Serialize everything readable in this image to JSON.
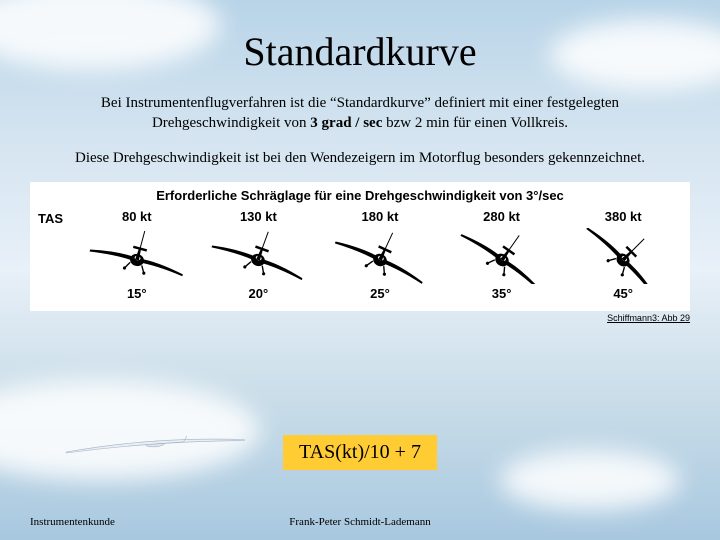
{
  "title": "Standardkurve",
  "para1_pre": "Bei Instrumentenflugverfahren ist die “Standardkurve” definiert mit einer festgelegten Drehgeschwindigkeit von ",
  "para1_bold": "3 grad / sec",
  "para1_post": " bzw 2 min für einen Vollkreis.",
  "para2": "Diese Drehgeschwindigkeit ist bei den Wendezeigern im Motorflug besonders gekennzeichnet.",
  "diagram": {
    "title": "Erforderliche Schräglage für eine Drehgeschwindigkeit von 3°/sec",
    "tas_label": "TAS",
    "columns": [
      {
        "speed": "80 kt",
        "bank": "15°",
        "bank_deg": 15
      },
      {
        "speed": "130 kt",
        "bank": "20°",
        "bank_deg": 20
      },
      {
        "speed": "180 kt",
        "bank": "25°",
        "bank_deg": 25
      },
      {
        "speed": "280 kt",
        "bank": "35°",
        "bank_deg": 35
      },
      {
        "speed": "380 kt",
        "bank": "45°",
        "bank_deg": 45
      }
    ],
    "plane_fill": "#000000",
    "background": "#ffffff"
  },
  "attribution": "Schiffmann3: Abb 29",
  "formula": "TAS(kt)/10 + 7",
  "formula_bg": "#ffcc33",
  "footer_left": "Instrumentenkunde",
  "footer_center": "Frank-Peter Schmidt-Lademann"
}
